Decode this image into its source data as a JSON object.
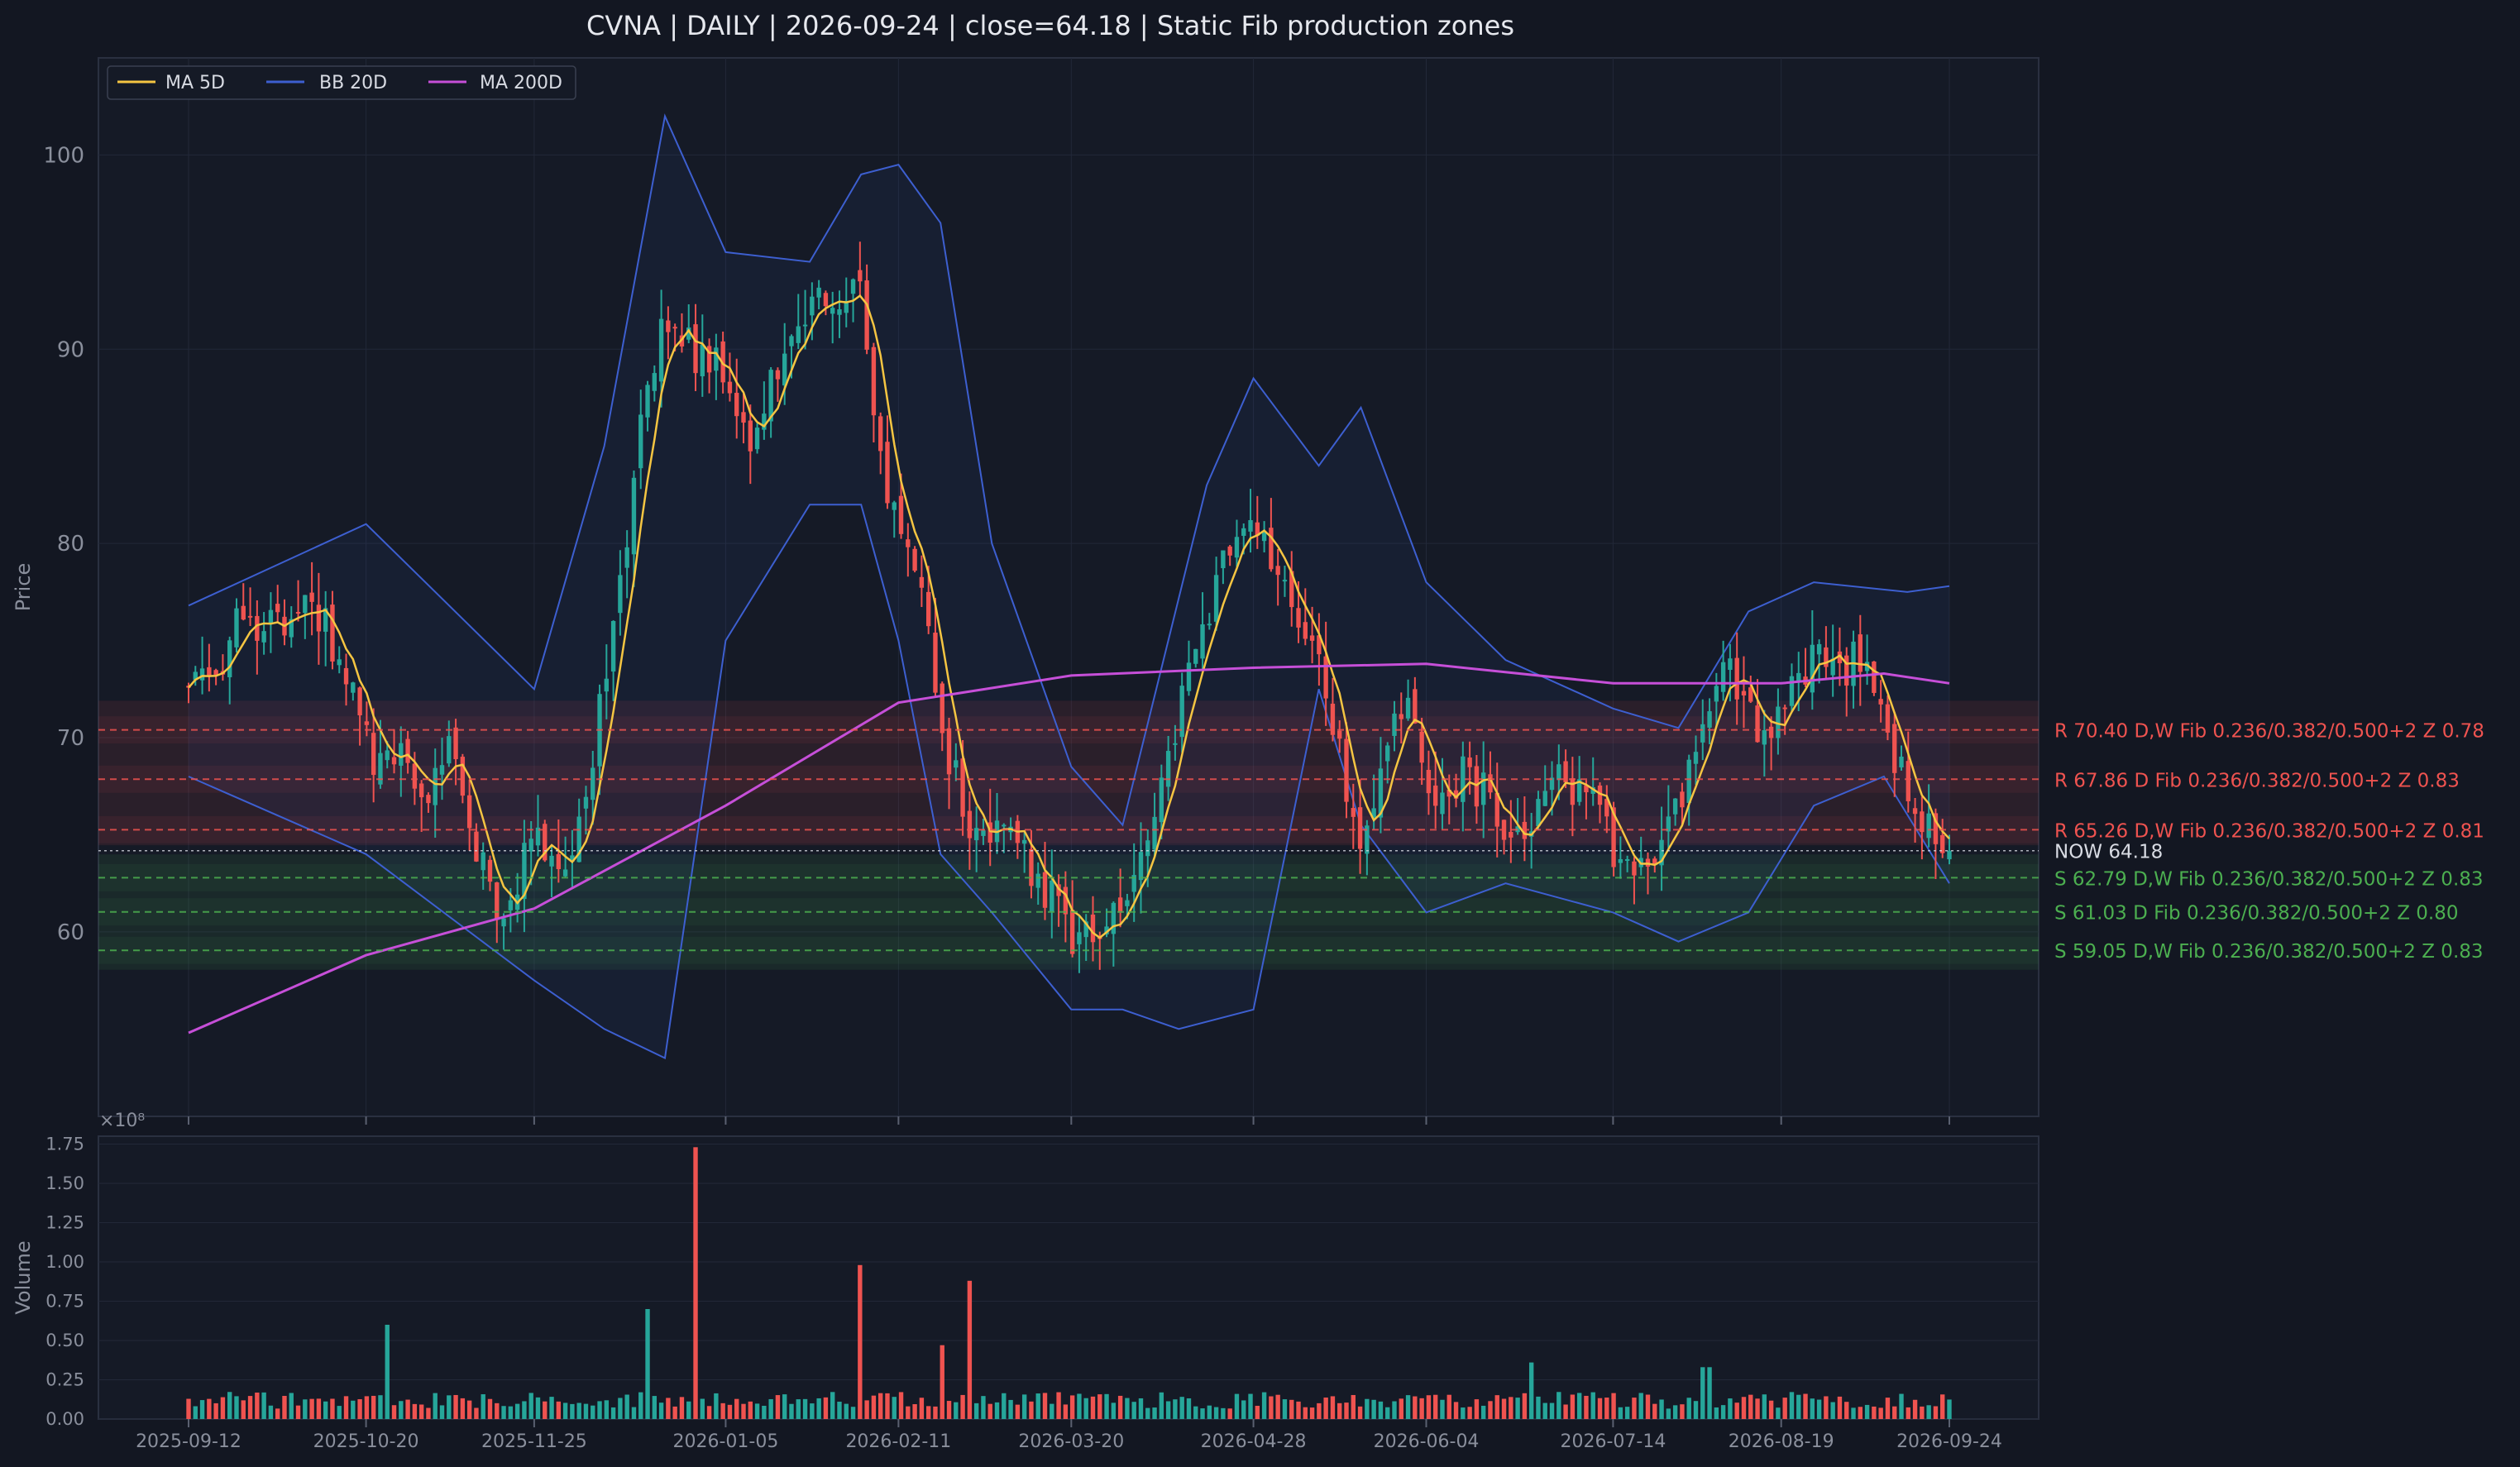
{
  "title": "CVNA  |  DAILY  |  2026-09-24  |  close=64.18  |  Static Fib production zones",
  "colors": {
    "background": "#131722",
    "panel": "#151a26",
    "grid": "#222838",
    "up": "#26a69a",
    "down": "#ef5350",
    "ma5": "#f5c542",
    "bb": "#3d5fd0",
    "ma200": "#c64fd8",
    "resistance": "#ef5350",
    "support": "#4caf50",
    "now": "#d8dbe3",
    "axis_text": "#8a8f9c"
  },
  "legend": [
    {
      "label": "MA 5D",
      "color": "#f5c542",
      "icon": "line-swatch"
    },
    {
      "label": "BB 20D",
      "color": "#3d5fd0",
      "icon": "line-swatch"
    },
    {
      "label": "MA 200D",
      "color": "#c64fd8",
      "icon": "line-swatch"
    }
  ],
  "chart_data": [
    {
      "type": "candlestick",
      "panel": "price",
      "ylabel": "Price",
      "ylim": [
        50.5,
        105
      ],
      "yticks": [
        60,
        70,
        80,
        90,
        100
      ],
      "grid": true,
      "legend_position": "top-left",
      "x_range": [
        "2025-09-12",
        "2026-09-24"
      ],
      "xtick_labels": [
        "2025-09-12",
        "2025-10-20",
        "2025-11-25",
        "2026-01-05",
        "2026-02-11",
        "2026-03-20",
        "2026-04-28",
        "2026-06-04",
        "2026-07-14",
        "2026-08-19",
        "2026-09-24"
      ],
      "close_path": [
        [
          "2025-09-12",
          72.8
        ],
        [
          "2025-09-18",
          73.5
        ],
        [
          "2025-09-24",
          76.5
        ],
        [
          "2025-09-30",
          75.5
        ],
        [
          "2025-10-06",
          77.5
        ],
        [
          "2025-10-10",
          76.5
        ],
        [
          "2025-10-16",
          72.5
        ],
        [
          "2025-10-22",
          68.5
        ],
        [
          "2025-10-28",
          69.0
        ],
        [
          "2025-11-03",
          67.5
        ],
        [
          "2025-11-07",
          69.5
        ],
        [
          "2025-11-13",
          64.0
        ],
        [
          "2025-11-17",
          61.5
        ],
        [
          "2025-11-21",
          62.5
        ],
        [
          "2025-11-25",
          64.5
        ],
        [
          "2025-12-01",
          63.5
        ],
        [
          "2025-12-05",
          65.0
        ],
        [
          "2025-12-10",
          73.5
        ],
        [
          "2025-12-15",
          80.0
        ],
        [
          "2025-12-19",
          88.0
        ],
        [
          "2025-12-23",
          92.0
        ],
        [
          "2025-12-29",
          90.0
        ],
        [
          "2026-01-05",
          88.5
        ],
        [
          "2026-01-09",
          85.0
        ],
        [
          "2026-01-13",
          86.5
        ],
        [
          "2026-01-19",
          91.0
        ],
        [
          "2026-01-23",
          92.5
        ],
        [
          "2026-01-29",
          91.0
        ],
        [
          "2026-02-03",
          93.5
        ],
        [
          "2026-02-06",
          86.0
        ],
        [
          "2026-02-11",
          80.0
        ],
        [
          "2026-02-16",
          78.0
        ],
        [
          "2026-02-20",
          70.0
        ],
        [
          "2026-02-26",
          66.0
        ],
        [
          "2026-03-03",
          65.0
        ],
        [
          "2026-03-09",
          64.5
        ],
        [
          "2026-03-15",
          62.0
        ],
        [
          "2026-03-20",
          59.5
        ],
        [
          "2026-03-26",
          60.5
        ],
        [
          "2026-03-31",
          62.0
        ],
        [
          "2026-04-06",
          65.0
        ],
        [
          "2026-04-12",
          71.0
        ],
        [
          "2026-04-18",
          76.5
        ],
        [
          "2026-04-24",
          80.5
        ],
        [
          "2026-04-28",
          81.5
        ],
        [
          "2026-05-02",
          79.0
        ],
        [
          "2026-05-07",
          77.0
        ],
        [
          "2026-05-12",
          75.0
        ],
        [
          "2026-05-17",
          68.0
        ],
        [
          "2026-05-21",
          65.0
        ],
        [
          "2026-05-27",
          70.0
        ],
        [
          "2026-06-01",
          72.0
        ],
        [
          "2026-06-04",
          66.0
        ],
        [
          "2026-06-10",
          68.0
        ],
        [
          "2026-06-16",
          67.5
        ],
        [
          "2026-06-21",
          65.5
        ],
        [
          "2026-06-27",
          66.0
        ],
        [
          "2026-07-01",
          68.0
        ],
        [
          "2026-07-06",
          67.5
        ],
        [
          "2026-07-10",
          66.5
        ],
        [
          "2026-07-14",
          64.5
        ],
        [
          "2026-07-18",
          62.5
        ],
        [
          "2026-07-22",
          64.0
        ],
        [
          "2026-07-28",
          66.5
        ],
        [
          "2026-08-03",
          70.0
        ],
        [
          "2026-08-07",
          73.5
        ],
        [
          "2026-08-12",
          71.0
        ],
        [
          "2026-08-17",
          70.0
        ],
        [
          "2026-08-21",
          72.0
        ],
        [
          "2026-08-26",
          74.0
        ],
        [
          "2026-08-31",
          73.5
        ],
        [
          "2026-09-05",
          74.0
        ],
        [
          "2026-09-10",
          71.0
        ],
        [
          "2026-09-15",
          67.0
        ],
        [
          "2026-09-19",
          65.5
        ],
        [
          "2026-09-24",
          64.18
        ]
      ],
      "ma200": [
        [
          "2025-09-12",
          54.8
        ],
        [
          "2025-10-20",
          58.8
        ],
        [
          "2025-11-25",
          61.2
        ],
        [
          "2026-01-05",
          66.5
        ],
        [
          "2026-02-11",
          71.8
        ],
        [
          "2026-03-20",
          73.2
        ],
        [
          "2026-04-28",
          73.6
        ],
        [
          "2026-06-04",
          73.8
        ],
        [
          "2026-07-14",
          72.8
        ],
        [
          "2026-08-19",
          72.8
        ],
        [
          "2026-09-10",
          73.3
        ],
        [
          "2026-09-24",
          72.8
        ]
      ],
      "bb_upper": [
        [
          "2025-09-12",
          76.8
        ],
        [
          "2025-10-20",
          81.0
        ],
        [
          "2025-11-25",
          72.5
        ],
        [
          "2025-12-10",
          85.0
        ],
        [
          "2025-12-23",
          102.0
        ],
        [
          "2026-01-05",
          95.0
        ],
        [
          "2026-01-23",
          94.5
        ],
        [
          "2026-02-03",
          99.0
        ],
        [
          "2026-02-11",
          99.5
        ],
        [
          "2026-02-20",
          96.5
        ],
        [
          "2026-03-03",
          80.0
        ],
        [
          "2026-03-20",
          68.5
        ],
        [
          "2026-03-31",
          65.5
        ],
        [
          "2026-04-18",
          83.0
        ],
        [
          "2026-04-28",
          88.5
        ],
        [
          "2026-05-12",
          84.0
        ],
        [
          "2026-05-21",
          87.0
        ],
        [
          "2026-06-04",
          78.0
        ],
        [
          "2026-06-21",
          74.0
        ],
        [
          "2026-07-14",
          71.5
        ],
        [
          "2026-07-28",
          70.5
        ],
        [
          "2026-08-12",
          76.5
        ],
        [
          "2026-08-26",
          78.0
        ],
        [
          "2026-09-15",
          77.5
        ],
        [
          "2026-09-24",
          77.8
        ]
      ],
      "bb_lower": [
        [
          "2025-09-12",
          68.0
        ],
        [
          "2025-10-20",
          64.0
        ],
        [
          "2025-11-25",
          57.5
        ],
        [
          "2025-12-10",
          55.0
        ],
        [
          "2025-12-23",
          53.5
        ],
        [
          "2026-01-05",
          75.0
        ],
        [
          "2026-01-23",
          82.0
        ],
        [
          "2026-02-03",
          82.0
        ],
        [
          "2026-02-11",
          75.0
        ],
        [
          "2026-02-20",
          64.0
        ],
        [
          "2026-03-03",
          61.0
        ],
        [
          "2026-03-20",
          56.0
        ],
        [
          "2026-03-31",
          56.0
        ],
        [
          "2026-04-12",
          55.0
        ],
        [
          "2026-04-28",
          56.0
        ],
        [
          "2026-05-12",
          72.5
        ],
        [
          "2026-05-21",
          65.5
        ],
        [
          "2026-06-04",
          61.0
        ],
        [
          "2026-06-21",
          62.5
        ],
        [
          "2026-07-14",
          61.0
        ],
        [
          "2026-07-28",
          59.5
        ],
        [
          "2026-08-12",
          61.0
        ],
        [
          "2026-08-26",
          66.5
        ],
        [
          "2026-09-10",
          68.0
        ],
        [
          "2026-09-24",
          62.5
        ]
      ],
      "zones": [
        {
          "side": "R",
          "price": 70.4,
          "label": "R 70.40  D,W  Fib 0.236/0.382/0.500+2  Z 0.78"
        },
        {
          "side": "R",
          "price": 67.86,
          "label": "R 67.86  D  Fib 0.236/0.382/0.500+2  Z 0.83"
        },
        {
          "side": "R",
          "price": 65.26,
          "label": "R 65.26  D,W  Fib 0.236/0.382/0.500+2  Z 0.81"
        },
        {
          "side": "S",
          "price": 62.79,
          "label": "S 62.79  D,W  Fib 0.236/0.382/0.500+2  Z 0.83"
        },
        {
          "side": "S",
          "price": 61.03,
          "label": "S 61.03  D  Fib 0.236/0.382/0.500+2  Z 0.80"
        },
        {
          "side": "S",
          "price": 59.05,
          "label": "S 59.05  D,W  Fib 0.236/0.382/0.500+2  Z 0.83"
        }
      ],
      "now": {
        "price": 64.18,
        "label": "NOW 64.18"
      }
    },
    {
      "type": "bar",
      "panel": "volume",
      "ylabel": "Volume",
      "scale_label": "×10⁸",
      "ylim": [
        0,
        1.8
      ],
      "yticks": [
        "0.00",
        "0.25",
        "0.50",
        "0.75",
        "1.00",
        "1.25",
        "1.50",
        "1.75"
      ],
      "typical_volume": 0.12,
      "spikes": [
        {
          "date": "2025-10-24",
          "value": 0.6
        },
        {
          "date": "2025-12-19",
          "value": 0.7
        },
        {
          "date": "2025-12-29",
          "value": 1.73
        },
        {
          "date": "2026-02-03",
          "value": 0.98
        },
        {
          "date": "2026-02-26",
          "value": 0.88
        },
        {
          "date": "2026-02-20",
          "value": 0.47
        },
        {
          "date": "2026-06-27",
          "value": 0.36
        },
        {
          "date": "2026-08-03",
          "value": 0.33
        }
      ]
    }
  ]
}
